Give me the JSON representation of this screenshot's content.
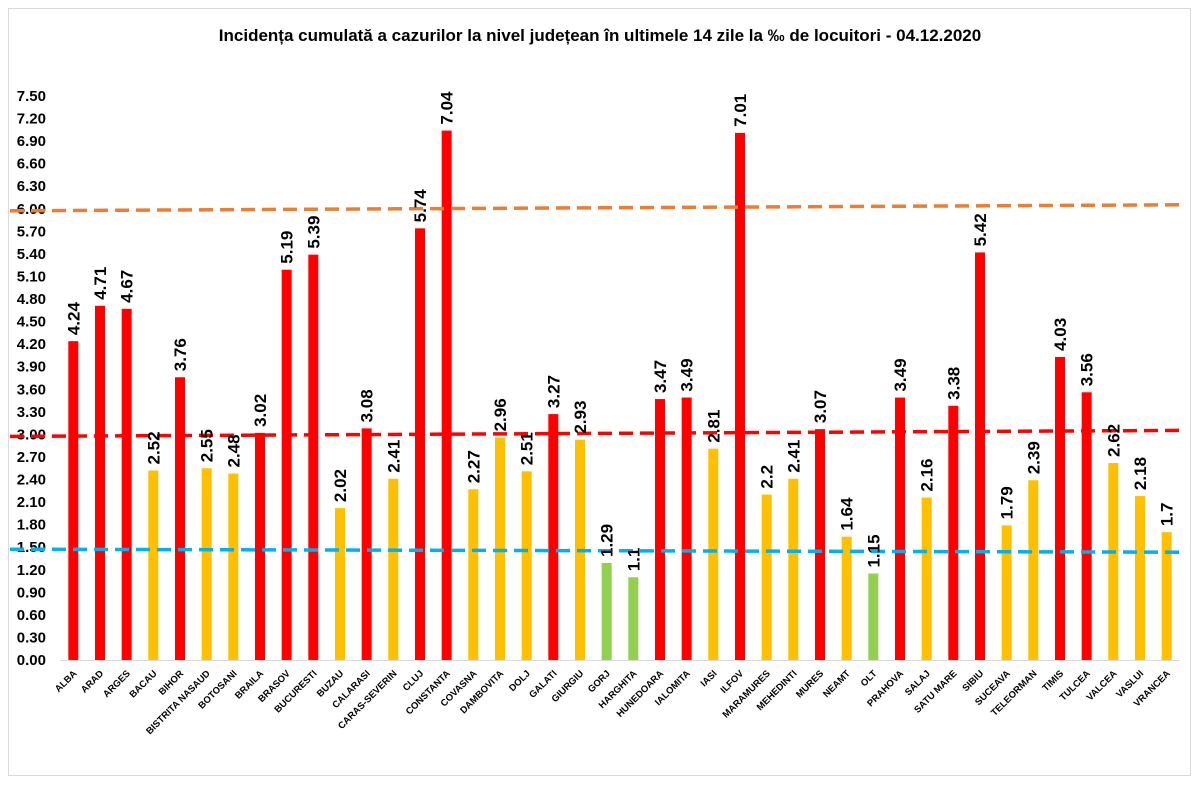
{
  "chart_data": {
    "type": "bar",
    "title": "Incidența cumulată a cazurilor la nivel județean în ultimele 14 zile la ‰ de locuitori - 04.12.2020",
    "xlabel": "",
    "ylabel": "",
    "ylim": [
      0,
      7.5
    ],
    "yticks": [
      "0.00",
      "0.30",
      "0.60",
      "0.90",
      "1.20",
      "1.50",
      "1.80",
      "2.10",
      "2.40",
      "2.70",
      "3.00",
      "3.30",
      "3.60",
      "3.90",
      "4.20",
      "4.50",
      "4.80",
      "5.10",
      "5.40",
      "5.70",
      "6.00",
      "6.30",
      "6.60",
      "6.90",
      "7.20",
      "7.50"
    ],
    "grid": false,
    "legend": "none",
    "categories": [
      "ALBA",
      "ARAD",
      "ARGES",
      "BACAU",
      "BIHOR",
      "BISTRITA NASAUD",
      "BOTOSANI",
      "BRAILA",
      "BRASOV",
      "BUCURESTI",
      "BUZAU",
      "CALARASI",
      "CARAS-SEVERIN",
      "CLUJ",
      "CONSTANTA",
      "COVASNA",
      "DAMBOVITA",
      "DOLJ",
      "GALATI",
      "GIURGIU",
      "GORJ",
      "HARGHITA",
      "HUNEDOARA",
      "IALOMITA",
      "IASI",
      "ILFOV",
      "MARAMURES",
      "MEHEDINTI",
      "MURES",
      "NEAMT",
      "OLT",
      "PRAHOVA",
      "SALAJ",
      "SATU MARE",
      "SIBIU",
      "SUCEAVA",
      "TELEORMAN",
      "TIMIS",
      "TULCEA",
      "VALCEA",
      "VASLUI",
      "VRANCEA"
    ],
    "values": [
      4.24,
      4.71,
      4.67,
      2.52,
      3.76,
      2.55,
      2.48,
      3.02,
      5.19,
      5.39,
      2.02,
      3.08,
      2.41,
      5.74,
      7.04,
      2.27,
      2.96,
      2.51,
      3.27,
      2.93,
      1.29,
      1.1,
      3.47,
      3.49,
      2.81,
      7.01,
      2.2,
      2.41,
      3.07,
      1.64,
      1.15,
      3.49,
      2.16,
      3.38,
      5.42,
      1.79,
      2.39,
      4.03,
      3.56,
      2.62,
      2.18,
      1.7
    ],
    "value_labels": [
      "4.24",
      "4.71",
      "4.67",
      "2.52",
      "3.76",
      "2.55",
      "2.48",
      "3.02",
      "5.19",
      "5.39",
      "2.02",
      "3.08",
      "2.41",
      "5.74",
      "7.04",
      "2.27",
      "2.96",
      "2.51",
      "3.27",
      "2.93",
      "1.29",
      "1.1",
      "3.47",
      "3.49",
      "2.81",
      "7.01",
      "2.2",
      "2.41",
      "3.07",
      "1.64",
      "1.15",
      "3.49",
      "2.16",
      "3.38",
      "5.42",
      "1.79",
      "2.39",
      "4.03",
      "3.56",
      "2.62",
      "2.18",
      "1.7"
    ],
    "bar_colors": {
      "above_3": "#ff0000",
      "between_1_5_and_3": "#ffc000",
      "below_1_5": "#92d050"
    },
    "reference_lines": [
      {
        "value": 6.0,
        "color": "#ed7d31",
        "style": "dashed"
      },
      {
        "value": 3.0,
        "color": "#ff0000",
        "style": "dashed"
      },
      {
        "value": 1.5,
        "color": "#00b0f0",
        "style": "dashed"
      }
    ]
  }
}
